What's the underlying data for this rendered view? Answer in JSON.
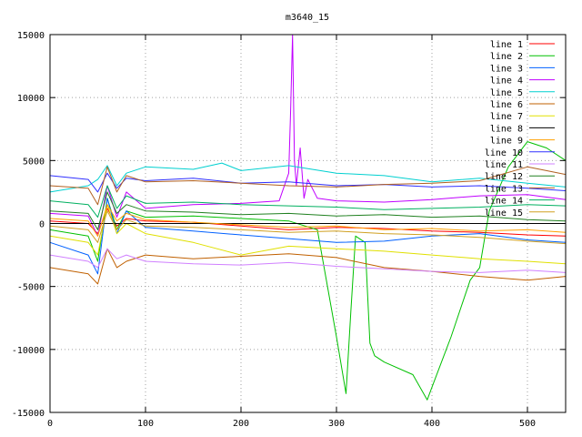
{
  "chart_data": {
    "type": "line",
    "title": "m3640_15",
    "xlabel": "",
    "ylabel": "",
    "xlim": [
      0,
      540
    ],
    "ylim": [
      -15000,
      15000
    ],
    "xticks": [
      0,
      100,
      200,
      300,
      400,
      500
    ],
    "yticks": [
      -15000,
      -10000,
      -5000,
      0,
      5000,
      10000,
      15000
    ],
    "grid": true,
    "legend_position": "top-right",
    "series": [
      {
        "name": "line 1",
        "color": "#ff0000",
        "x": [
          0,
          40,
          50,
          60,
          70,
          80,
          100,
          150,
          200,
          250,
          300,
          350,
          400,
          450,
          500,
          540
        ],
        "y": [
          200,
          0,
          -800,
          1200,
          -200,
          400,
          200,
          100,
          -200,
          -500,
          -300,
          -400,
          -600,
          -700,
          -900,
          -1000
        ]
      },
      {
        "name": "line 2",
        "color": "#00c000",
        "x": [
          0,
          40,
          50,
          60,
          70,
          80,
          100,
          150,
          200,
          250,
          280,
          300,
          310,
          315,
          320,
          330,
          335,
          340,
          350,
          380,
          395,
          400,
          420,
          440,
          450,
          460,
          480,
          500,
          520,
          540
        ],
        "y": [
          -500,
          -1000,
          -3000,
          2000,
          -500,
          1000,
          500,
          600,
          400,
          200,
          -500,
          -9000,
          -13500,
          -7000,
          -1000,
          -1500,
          -9500,
          -10500,
          -11000,
          -12000,
          -14000,
          -13000,
          -9000,
          -4500,
          -3500,
          1000,
          4500,
          6500,
          6000,
          5000
        ]
      },
      {
        "name": "line 3",
        "color": "#0060ff",
        "x": [
          0,
          40,
          50,
          60,
          70,
          80,
          100,
          150,
          200,
          250,
          300,
          350,
          400,
          450,
          500,
          540
        ],
        "y": [
          -1500,
          -2500,
          -4000,
          2000,
          -800,
          1000,
          -300,
          -600,
          -900,
          -1200,
          -1500,
          -1400,
          -1000,
          -800,
          -1300,
          -1500
        ]
      },
      {
        "name": "line 4",
        "color": "#c000ff",
        "x": [
          0,
          40,
          50,
          60,
          70,
          80,
          100,
          150,
          200,
          240,
          250,
          252,
          254,
          256,
          258,
          262,
          266,
          270,
          280,
          300,
          350,
          400,
          450,
          500,
          540
        ],
        "y": [
          800,
          600,
          -1000,
          3000,
          500,
          2500,
          1200,
          1500,
          1600,
          1800,
          4000,
          9000,
          15000,
          5000,
          3000,
          6000,
          2000,
          3500,
          2000,
          1800,
          1700,
          1900,
          2200,
          2300,
          1900
        ]
      },
      {
        "name": "line 5",
        "color": "#00d0d0",
        "x": [
          0,
          40,
          50,
          60,
          70,
          80,
          100,
          150,
          180,
          200,
          250,
          300,
          350,
          400,
          450,
          500,
          540
        ],
        "y": [
          2500,
          3000,
          3500,
          4600,
          3000,
          4000,
          4500,
          4300,
          4800,
          4200,
          4600,
          4000,
          3800,
          3300,
          3600,
          3200,
          2900
        ]
      },
      {
        "name": "line 6",
        "color": "#c06000",
        "x": [
          0,
          40,
          50,
          60,
          70,
          80,
          100,
          150,
          200,
          250,
          300,
          350,
          400,
          450,
          500,
          540
        ],
        "y": [
          -3500,
          -4000,
          -4800,
          -2000,
          -3500,
          -3000,
          -2500,
          -2800,
          -2600,
          -2400,
          -2700,
          -3500,
          -3800,
          -4200,
          -4500,
          -4200
        ]
      },
      {
        "name": "line 7",
        "color": "#e0e000",
        "x": [
          0,
          40,
          50,
          60,
          70,
          80,
          100,
          150,
          200,
          250,
          300,
          350,
          400,
          450,
          500,
          540
        ],
        "y": [
          -1000,
          -1500,
          -2500,
          1500,
          -800,
          0,
          -800,
          -1500,
          -2500,
          -1800,
          -2000,
          -2200,
          -2500,
          -2800,
          -3000,
          -3200
        ]
      },
      {
        "name": "line 8",
        "color": "#000000",
        "x": [
          0,
          540
        ],
        "y": [
          0,
          0
        ]
      },
      {
        "name": "line 9",
        "color": "#ffa000",
        "x": [
          0,
          40,
          50,
          60,
          70,
          80,
          100,
          150,
          200,
          250,
          300,
          350,
          400,
          450,
          500,
          540
        ],
        "y": [
          400,
          200,
          -1000,
          1500,
          200,
          800,
          300,
          100,
          -100,
          -300,
          -200,
          -500,
          -400,
          -600,
          -500,
          -700
        ]
      },
      {
        "name": "line 10",
        "color": "#3030ff",
        "x": [
          0,
          40,
          50,
          60,
          70,
          80,
          100,
          150,
          200,
          250,
          300,
          350,
          400,
          450,
          500,
          540
        ],
        "y": [
          3800,
          3500,
          2500,
          4000,
          2800,
          3600,
          3400,
          3600,
          3200,
          3300,
          3000,
          3100,
          2900,
          3000,
          2800,
          2600
        ]
      },
      {
        "name": "line 11",
        "color": "#d080ff",
        "x": [
          0,
          40,
          50,
          60,
          70,
          80,
          100,
          150,
          200,
          250,
          300,
          350,
          400,
          450,
          500,
          540
        ],
        "y": [
          -2500,
          -3000,
          -3500,
          -2000,
          -2800,
          -2500,
          -3000,
          -3200,
          -3300,
          -3100,
          -3400,
          -3600,
          -3800,
          -3900,
          -3700,
          -3900
        ]
      },
      {
        "name": "line 12",
        "color": "#208020",
        "x": [
          0,
          40,
          50,
          60,
          70,
          80,
          100,
          150,
          200,
          250,
          300,
          350,
          400,
          450,
          500,
          540
        ],
        "y": [
          1000,
          800,
          -500,
          2500,
          800,
          1500,
          1000,
          900,
          700,
          800,
          600,
          700,
          500,
          600,
          300,
          200
        ]
      },
      {
        "name": "line 13",
        "color": "#b06020",
        "x": [
          0,
          40,
          50,
          60,
          70,
          80,
          100,
          150,
          200,
          250,
          300,
          350,
          400,
          450,
          500,
          540
        ],
        "y": [
          3000,
          2800,
          1500,
          4500,
          2500,
          3800,
          3300,
          3400,
          3200,
          3000,
          2900,
          3100,
          3200,
          3400,
          4500,
          3900
        ]
      },
      {
        "name": "line 14",
        "color": "#00b060",
        "x": [
          0,
          40,
          50,
          60,
          70,
          80,
          100,
          150,
          200,
          250,
          300,
          350,
          400,
          450,
          500,
          540
        ],
        "y": [
          1800,
          1500,
          500,
          3000,
          1200,
          2200,
          1600,
          1700,
          1500,
          1400,
          1300,
          1100,
          1200,
          1300,
          1500,
          1400
        ]
      },
      {
        "name": "line 15",
        "color": "#d0a020",
        "x": [
          0,
          40,
          50,
          60,
          70,
          80,
          100,
          150,
          200,
          250,
          300,
          350,
          400,
          450,
          500,
          540
        ],
        "y": [
          -200,
          -500,
          -1500,
          1000,
          -500,
          300,
          -200,
          -300,
          -500,
          -700,
          -600,
          -800,
          -900,
          -1100,
          -1400,
          -1600
        ]
      }
    ]
  }
}
